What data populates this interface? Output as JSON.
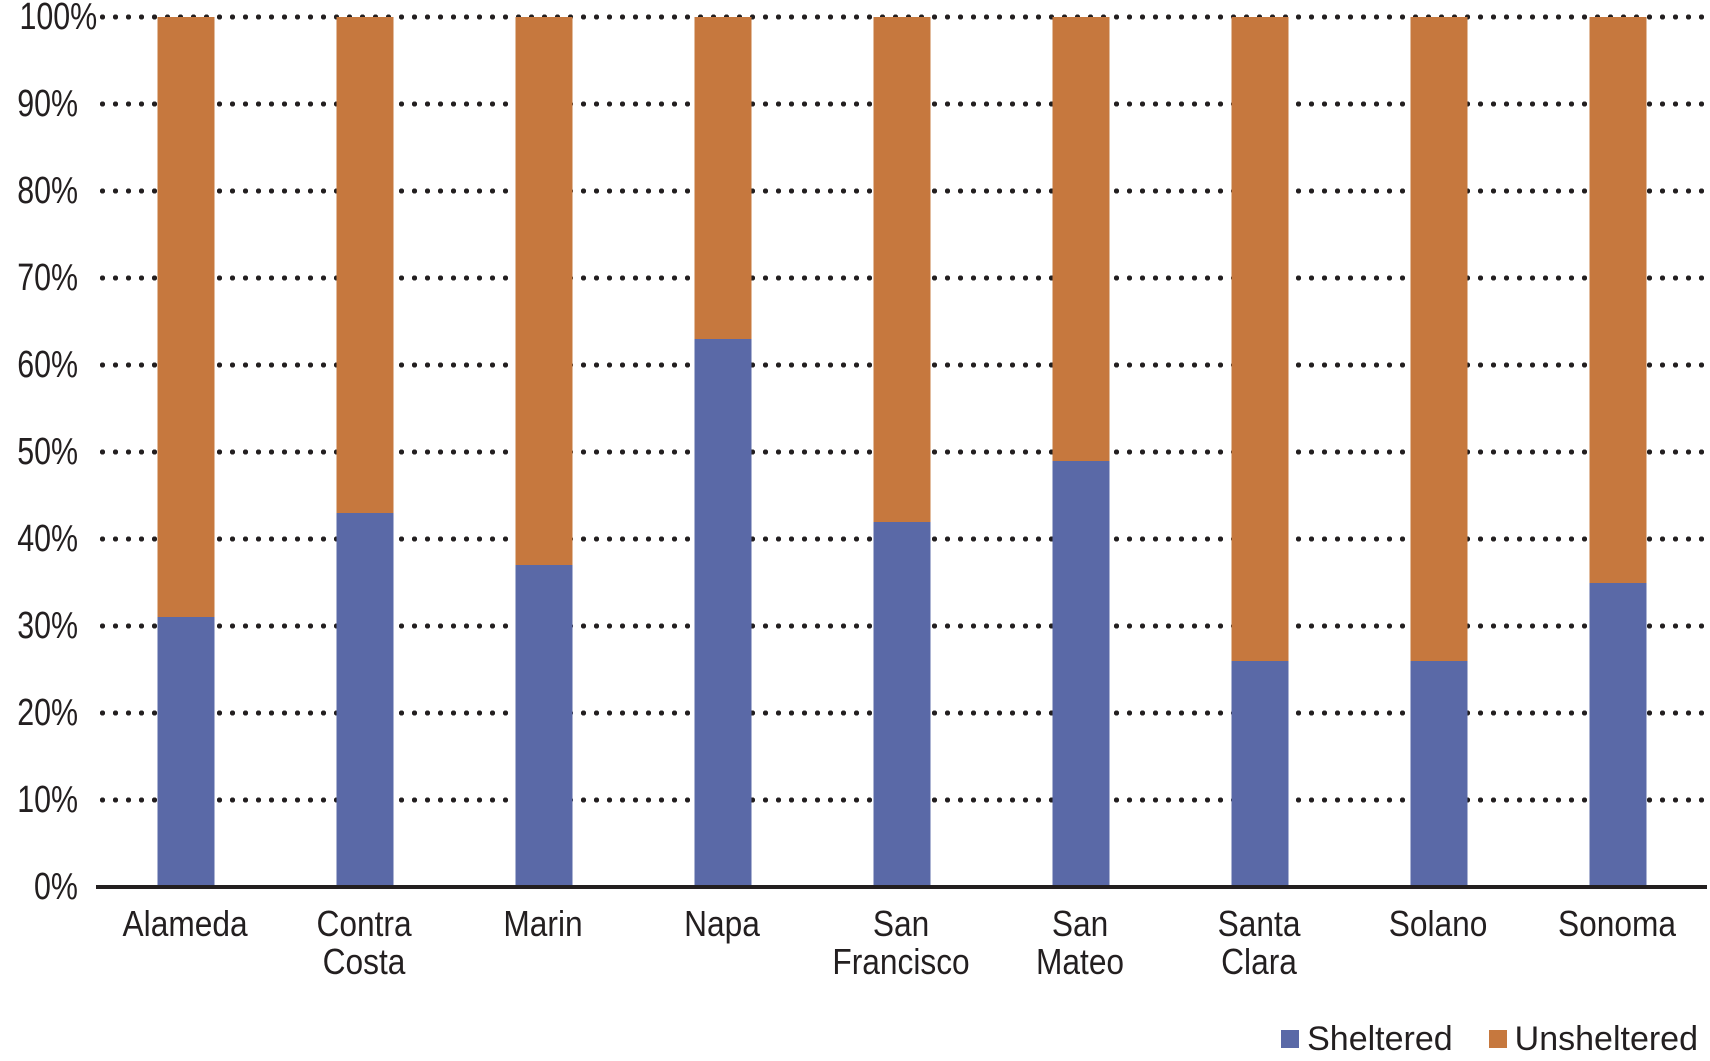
{
  "chart_data": {
    "type": "bar",
    "variant": "stacked-100-percent",
    "title": "",
    "categories": [
      "Alameda",
      "Contra\nCosta",
      "Marin",
      "Napa",
      "San\nFrancisco",
      "San\nMateo",
      "Santa\nClara",
      "Solano",
      "Sonoma"
    ],
    "series": [
      {
        "name": "Sheltered",
        "color": "#5a69a7",
        "values": [
          31,
          43,
          37,
          63,
          42,
          49,
          26,
          26,
          35
        ]
      },
      {
        "name": "Unsheltered",
        "color": "#c6783e",
        "values": [
          69,
          57,
          63,
          37,
          58,
          51,
          74,
          74,
          65
        ]
      }
    ],
    "xlabel": "",
    "ylabel": "",
    "ylim": [
      0,
      100
    ],
    "y_ticks": [
      "100%",
      "90%",
      "80%",
      "70%",
      "60%",
      "50%",
      "40%",
      "30%",
      "20%",
      "10%",
      "0%"
    ],
    "grid": "horizontal-dotted",
    "legend_position": "bottom-right"
  },
  "legend": {
    "sheltered_label": "Sheltered",
    "unsheltered_label": "Unsheltered"
  },
  "colors": {
    "sheltered": "#5a69a7",
    "unsheltered": "#c6783e",
    "grid_dots": "#231f20",
    "axis_line": "#231f20",
    "text": "#231f20",
    "background": "#ffffff"
  }
}
